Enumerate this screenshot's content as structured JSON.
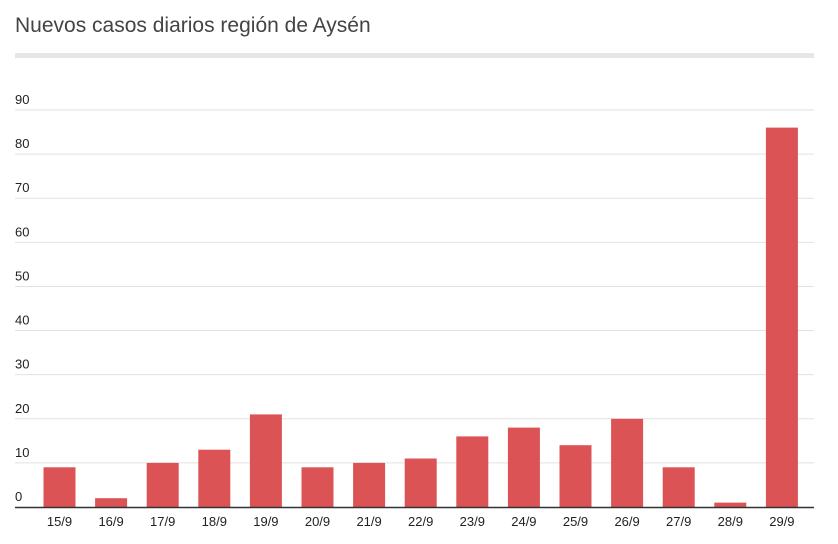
{
  "chart_data": {
    "type": "bar",
    "title": "Nuevos casos diarios región de Aysén",
    "xlabel": "",
    "ylabel": "",
    "categories": [
      "15/9",
      "16/9",
      "17/9",
      "18/9",
      "19/9",
      "20/9",
      "21/9",
      "22/9",
      "23/9",
      "24/9",
      "25/9",
      "26/9",
      "27/9",
      "28/9",
      "29/9"
    ],
    "values": [
      9,
      2,
      10,
      13,
      21,
      9,
      10,
      11,
      16,
      18,
      14,
      20,
      9,
      1,
      86
    ],
    "ylim": [
      0,
      90
    ],
    "yticks": [
      0,
      10,
      20,
      30,
      40,
      50,
      60,
      70,
      80,
      90
    ],
    "grid": true,
    "legend": "none",
    "bar_color": "#dc5356",
    "grid_color": "#e2e2e2",
    "axis_color": "#333333"
  }
}
